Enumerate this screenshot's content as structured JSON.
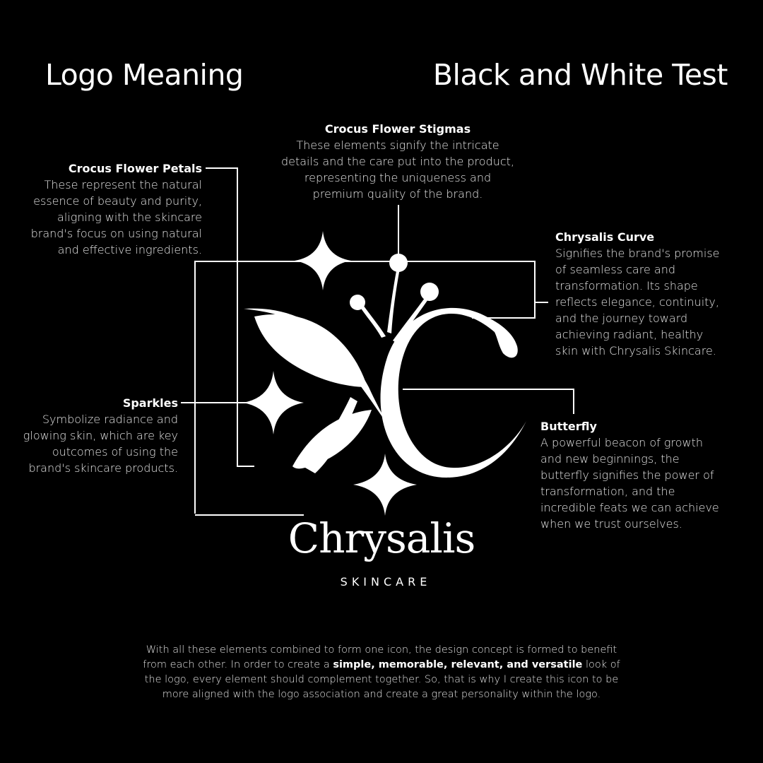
{
  "headings": {
    "left": "Logo Meaning",
    "right": "Black and White Test"
  },
  "annotations": {
    "stigmas": {
      "title": "Crocus Flower Stigmas",
      "body": "These elements signify the intricate\ndetails and the care put into the product,\nrepresenting the uniqueness and\npremium quality of the brand."
    },
    "petals": {
      "title": "Crocus Flower Petals",
      "body": "These represent the natural\nessence of beauty and purity,\naligning with the skincare\nbrand's focus on using natural\nand effective ingredients."
    },
    "curve": {
      "title": "Chrysalis Curve",
      "body": "Signifies the brand's promise\nof seamless care and\ntransformation. Its shape\nreflects elegance, continuity,\nand the journey toward\nachieving radiant, healthy\nskin with Chrysalis Skincare."
    },
    "sparkles": {
      "title": "Sparkles",
      "body": "Symbolize radiance and\nglowing skin, which are key\noutcomes of using the\nbrand's skincare products."
    },
    "butterfly": {
      "title": "Butterfly",
      "body": "A powerful beacon of growth\nand new beginnings, the\nbutterfly signifies the power of\ntransformation, and the\nincredible feats we can achieve\nwhen we trust ourselves."
    }
  },
  "brand": {
    "name": "Chrysalis",
    "tagline": "SKINCARE"
  },
  "concept": {
    "part1": "With all these elements combined to form one icon, the design concept is formed to benefit from each other. In order to create a ",
    "bold": "simple, memorable, relevant, and versatile",
    "part2": " look of the logo, every element should complement together. So, that is why I create this icon to be more aligned with the logo association and create a great personality within the logo."
  },
  "colors": {
    "background": "#000000",
    "foreground": "#ffffff"
  },
  "icons": [
    "chrysalis-logo-icon",
    "sparkle-icon"
  ]
}
